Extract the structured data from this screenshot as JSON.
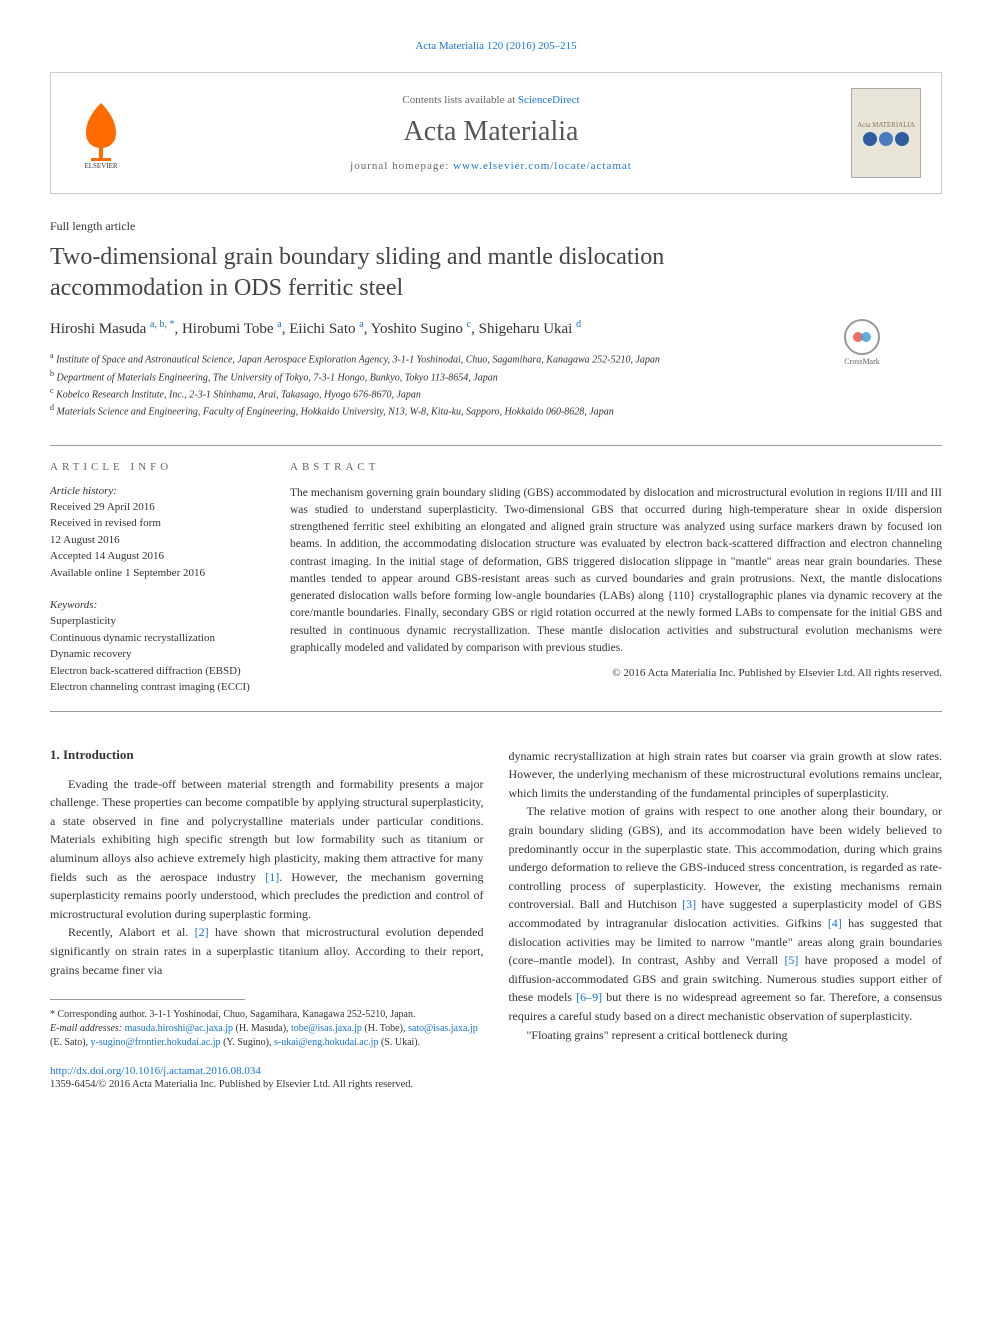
{
  "citation": "Acta Materialia 120 (2016) 205–215",
  "header": {
    "contents_prefix": "Contents lists available at ",
    "contents_link": "ScienceDirect",
    "journal_name": "Acta Materialia",
    "homepage_prefix": "journal homepage: ",
    "homepage_link": "www.elsevier.com/locate/actamat",
    "cover_title": "Acta MATERIALIA",
    "cover_colors": [
      "#2e5c9e",
      "#4a7bc0",
      "#2e5c9e"
    ]
  },
  "article_type": "Full length article",
  "title": "Two-dimensional grain boundary sliding and mantle dislocation accommodation in ODS ferritic steel",
  "crossmark_label": "CrossMark",
  "authors_html": "Hiroshi Masuda <sup>a, b, *</sup>, Hirobumi Tobe <sup>a</sup>, Eiichi Sato <sup>a</sup>, Yoshito Sugino <sup>c</sup>, Shigeharu Ukai <sup>d</sup>",
  "affiliations": [
    {
      "sup": "a",
      "text": "Institute of Space and Astronautical Science, Japan Aerospace Exploration Agency, 3-1-1 Yoshinodai, Chuo, Sagamihara, Kanagawa 252-5210, Japan"
    },
    {
      "sup": "b",
      "text": "Department of Materials Engineering, The University of Tokyo, 7-3-1 Hongo, Bunkyo, Tokyo 113-8654, Japan"
    },
    {
      "sup": "c",
      "text": "Kobelco Research Institute, Inc., 2-3-1 Shinhama, Arai, Takasago, Hyogo 676-8670, Japan"
    },
    {
      "sup": "d",
      "text": "Materials Science and Engineering, Faculty of Engineering, Hokkaido University, N13, W-8, Kita-ku, Sapporo, Hokkaido 060-8628, Japan"
    }
  ],
  "info": {
    "label": "ARTICLE INFO",
    "history_label": "Article history:",
    "history": [
      "Received 29 April 2016",
      "Received in revised form",
      "12 August 2016",
      "Accepted 14 August 2016",
      "Available online 1 September 2016"
    ],
    "keywords_label": "Keywords:",
    "keywords": [
      "Superplasticity",
      "Continuous dynamic recrystallization",
      "Dynamic recovery",
      "Electron back-scattered diffraction (EBSD)",
      "Electron channeling contrast imaging (ECCI)"
    ]
  },
  "abstract": {
    "label": "ABSTRACT",
    "text": "The mechanism governing grain boundary sliding (GBS) accommodated by dislocation and microstructural evolution in regions II/III and III was studied to understand superplasticity. Two-dimensional GBS that occurred during high-temperature shear in oxide dispersion strengthened ferritic steel exhibiting an elongated and aligned grain structure was analyzed using surface markers drawn by focused ion beams. In addition, the accommodating dislocation structure was evaluated by electron back-scattered diffraction and electron channeling contrast imaging. In the initial stage of deformation, GBS triggered dislocation slippage in \"mantle\" areas near grain boundaries. These mantles tended to appear around GBS-resistant areas such as curved boundaries and grain protrusions. Next, the mantle dislocations generated dislocation walls before forming low-angle boundaries (LABs) along {110} crystallographic planes via dynamic recovery at the core/mantle boundaries. Finally, secondary GBS or rigid rotation occurred at the newly formed LABs to compensate for the initial GBS and resulted in continuous dynamic recrystallization. These mantle dislocation activities and substructural evolution mechanisms were graphically modeled and validated by comparison with previous studies.",
    "copyright": "© 2016 Acta Materialia Inc. Published by Elsevier Ltd. All rights reserved."
  },
  "body": {
    "section_heading": "1. Introduction",
    "col1": {
      "p1": "Evading the trade-off between material strength and formability presents a major challenge. These properties can become compatible by applying structural superplasticity, a state observed in fine and polycrystalline materials under particular conditions. Materials exhibiting high specific strength but low formability such as titanium or aluminum alloys also achieve extremely high plasticity, making them attractive for many fields such as the aerospace industry ",
      "ref1": "[1]",
      "p1b": ". However, the mechanism governing superplasticity remains poorly understood, which precludes the prediction and control of microstructural evolution during superplastic forming.",
      "p2a": "Recently, Alabort et al. ",
      "ref2": "[2]",
      "p2b": " have shown that microstructural evolution depended significantly on strain rates in a superplastic titanium alloy. According to their report, grains became finer via"
    },
    "col2": {
      "p1": "dynamic recrystallization at high strain rates but coarser via grain growth at slow rates. However, the underlying mechanism of these microstructural evolutions remains unclear, which limits the understanding of the fundamental principles of superplasticity.",
      "p2a": "The relative motion of grains with respect to one another along their boundary, or grain boundary sliding (GBS), and its accommodation have been widely believed to predominantly occur in the superplastic state. This accommodation, during which grains undergo deformation to relieve the GBS-induced stress concentration, is regarded as rate-controlling process of superplasticity. However, the existing mechanisms remain controversial. Ball and Hutchison ",
      "ref3": "[3]",
      "p2b": " have suggested a superplasticity model of GBS accommodated by intragranular dislocation activities. Gifkins ",
      "ref4": "[4]",
      "p2c": " has suggested that dislocation activities may be limited to narrow \"mantle\" areas along grain boundaries (core–mantle model). In contrast, Ashby and Verrall ",
      "ref5": "[5]",
      "p2d": " have proposed a model of diffusion-accommodated GBS and grain switching. Numerous studies support either of these models ",
      "ref69": "[6–9]",
      "p2e": " but there is no widespread agreement so far. Therefore, a consensus requires a careful study based on a direct mechanistic observation of superplasticity.",
      "p3": "\"Floating grains\" represent a critical bottleneck during"
    }
  },
  "footnote": {
    "corresponding": "* Corresponding author. 3-1-1 Yoshinodai, Chuo, Sagamihara, Kanagawa 252-5210, Japan.",
    "emails_label": "E-mail addresses: ",
    "emails": [
      {
        "addr": "masuda.hiroshi@ac.jaxa.jp",
        "name": "(H. Masuda)"
      },
      {
        "addr": "tobe@isas.jaxa.jp",
        "name": "(H. Tobe)"
      },
      {
        "addr": "sato@isas.jaxa.jp",
        "name": "(E. Sato)"
      },
      {
        "addr": "y-sugino@frontier.hokudai.ac.jp",
        "name": "(Y. Sugino)"
      },
      {
        "addr": "s-ukai@eng.hokudai.ac.jp",
        "name": "(S. Ukai)"
      }
    ]
  },
  "doi": {
    "url": "http://dx.doi.org/10.1016/j.actamat.2016.08.034",
    "issn": "1359-6454/© 2016 Acta Materialia Inc. Published by Elsevier Ltd. All rights reserved."
  },
  "colors": {
    "link": "#1976d2",
    "elsevier_orange": "#ff6b00",
    "text": "#333333",
    "border": "#cccccc"
  }
}
